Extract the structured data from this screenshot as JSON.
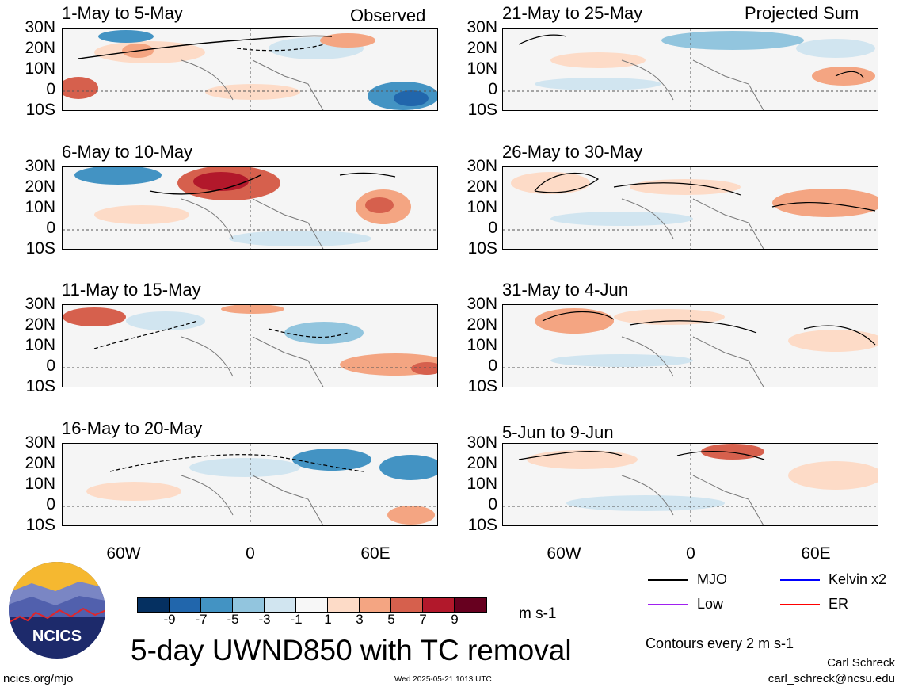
{
  "header": {
    "left_tag": "Observed",
    "right_tag": "Projected Sum"
  },
  "panels_left": [
    {
      "title": "1-May to 5-May"
    },
    {
      "title": "6-May to 10-May"
    },
    {
      "title": "11-May to 15-May"
    },
    {
      "title": "16-May to 20-May"
    }
  ],
  "panels_right": [
    {
      "title": "21-May to 25-May"
    },
    {
      "title": "26-May to 30-May"
    },
    {
      "title": "31-May to 4-Jun"
    },
    {
      "title": "5-Jun to 9-Jun"
    }
  ],
  "lat_labels": [
    "30N",
    "20N",
    "10N",
    "0",
    "10S"
  ],
  "lon_labels": [
    "60W",
    "0",
    "60E"
  ],
  "colorbar": {
    "labels": [
      "-9",
      "-7",
      "-5",
      "-3",
      "-1",
      "1",
      "3",
      "5",
      "7",
      "9"
    ],
    "colors": [
      "#053061",
      "#2166ac",
      "#4393c3",
      "#92c5de",
      "#d1e5f0",
      "#f7f7f7",
      "#fddbc7",
      "#f4a582",
      "#d6604d",
      "#b2182b",
      "#67001f"
    ],
    "units": "m s-1"
  },
  "legend": {
    "items": [
      {
        "label": "MJO",
        "color": "#000000"
      },
      {
        "label": "Kelvin x2",
        "color": "#0000ff"
      },
      {
        "label": "Low",
        "color": "#a020f0"
      },
      {
        "label": "ER",
        "color": "#ff0000"
      }
    ],
    "contours_note": "Contours every 2 m s-1"
  },
  "main_title": "5-day UWND850 with TC removal",
  "logo": {
    "text": "NCICS"
  },
  "footer": {
    "url": "ncics.org/mjo",
    "timestamp": "Wed 2025-05-21 1013 UTC",
    "author": "Carl Schreck",
    "email": "carl_schreck@ncsu.edu"
  }
}
